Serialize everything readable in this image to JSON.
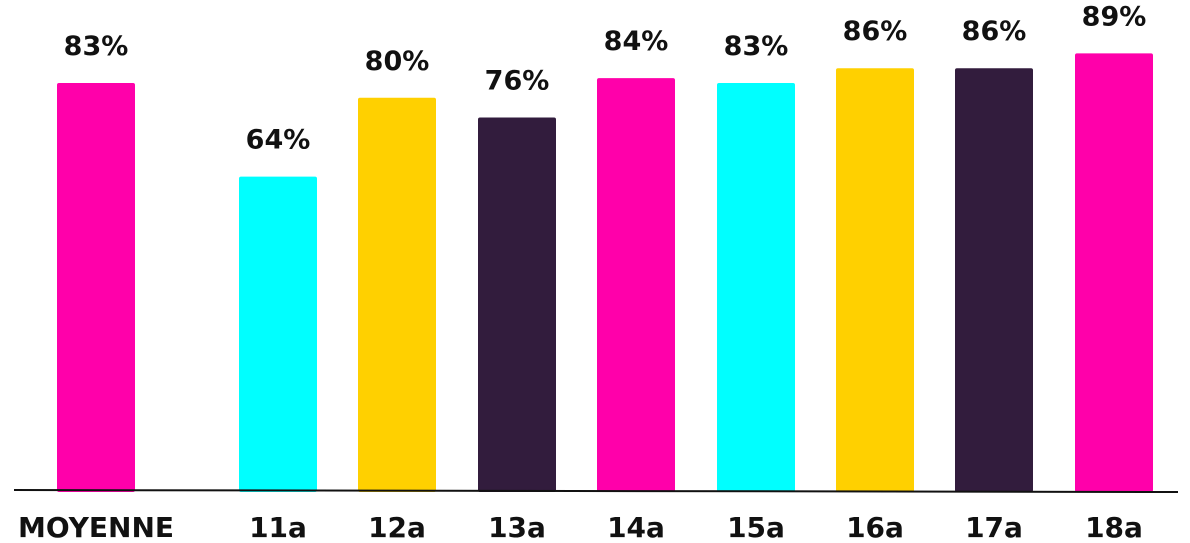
{
  "chart_data": {
    "type": "bar",
    "categories": [
      "MOYENNE",
      "11a",
      "12a",
      "13a",
      "14a",
      "15a",
      "16a",
      "17a",
      "18a"
    ],
    "values": [
      83,
      64,
      80,
      76,
      84,
      83,
      86,
      86,
      89
    ],
    "value_labels": [
      "83%",
      "64%",
      "80%",
      "76%",
      "84%",
      "83%",
      "86%",
      "86%",
      "89%"
    ],
    "bar_colors": [
      "#ff00aa",
      "#00ffff",
      "#ffd000",
      "#321c3d",
      "#ff00aa",
      "#00ffff",
      "#ffd000",
      "#321c3d",
      "#ff00aa"
    ],
    "title": "",
    "xlabel": "",
    "ylabel": "",
    "ylim": [
      0,
      100
    ],
    "grid": false,
    "legend": "none"
  }
}
